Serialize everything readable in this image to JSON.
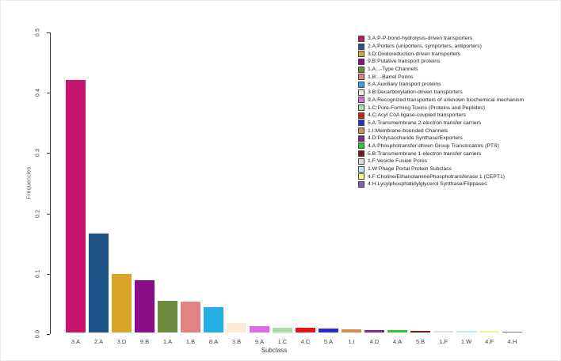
{
  "chart_data": {
    "type": "bar",
    "title": "",
    "xlabel": "Subclass",
    "ylabel": "Frequencies",
    "ylim": [
      0,
      0.5
    ],
    "ytick_labels": [
      "0.0",
      "0.1",
      "0.2",
      "0.3",
      "0.4",
      "0.5"
    ],
    "grid": false,
    "legend_position": "top-right",
    "categories": [
      "3.A",
      "2.A",
      "3.D",
      "9.B",
      "1.A",
      "1.B",
      "8.A",
      "3.B",
      "9.A",
      "1.C",
      "4.C",
      "5.A",
      "1.I",
      "4.D",
      "4.A",
      "5.B",
      "1.F",
      "1.W",
      "4.F",
      "4.H"
    ],
    "values": [
      0.418,
      0.164,
      0.097,
      0.087,
      0.053,
      0.051,
      0.042,
      0.016,
      0.011,
      0.008,
      0.008,
      0.007,
      0.005,
      0.004,
      0.004,
      0.003,
      0.002,
      0.002,
      0.002,
      0.001
    ],
    "colors": [
      "#C6156C",
      "#1F5589",
      "#D8A429",
      "#8A0D8A",
      "#6E8B3D",
      "#E28282",
      "#25AEE4",
      "#FAEBD7",
      "#DF6CDF",
      "#A8DCA8",
      "#E31414",
      "#2A2AD4",
      "#D28C4E",
      "#8A1E9E",
      "#30C430",
      "#77131F",
      "#EBD9DE",
      "#BFE8EA",
      "#F2F58C",
      "#875CB5"
    ],
    "legend_entries": [
      "3.A:P-P-bond-hydrolysis-driven transporters",
      "2.A:Porters (uniporters, symporters, antiporters)",
      "3.D:Oxidoreduction-driven transporters",
      "9.B:Putative transport proteins",
      "1.A:..-Type Channels",
      "1.B:..-Barrel Porins",
      "8.A:Auxiliary transport proteins",
      "3.B:Decarboxylation-driven transporters",
      "9.A:Recognized transporters of unknown biochemical mechanism",
      "1.C:Pore-Forming Toxins (Proteins and Peptides)",
      "4.C:Acyl CoA ligase-coupled transporters",
      "5.A:Transmembrane 2-electron transfer carriers",
      "1.I:Membrane-bounded Channels",
      "4.D:Polysaccharide Synthase/Exporters",
      "4.A:Phosphotransfer-driven Group Translocators (PTS)",
      "5.B:Transmembrane 1-electron transfer carriers",
      "1.F:Vesicle Fusion Pores",
      "1.W:Phage Portal Protein Subclass",
      "4.F:Choline/EthanolaminePhosphotransferase 1 (CEPT1)",
      "4.H:Lysylphosphatidylglycerol Synthase/Flippases"
    ]
  }
}
